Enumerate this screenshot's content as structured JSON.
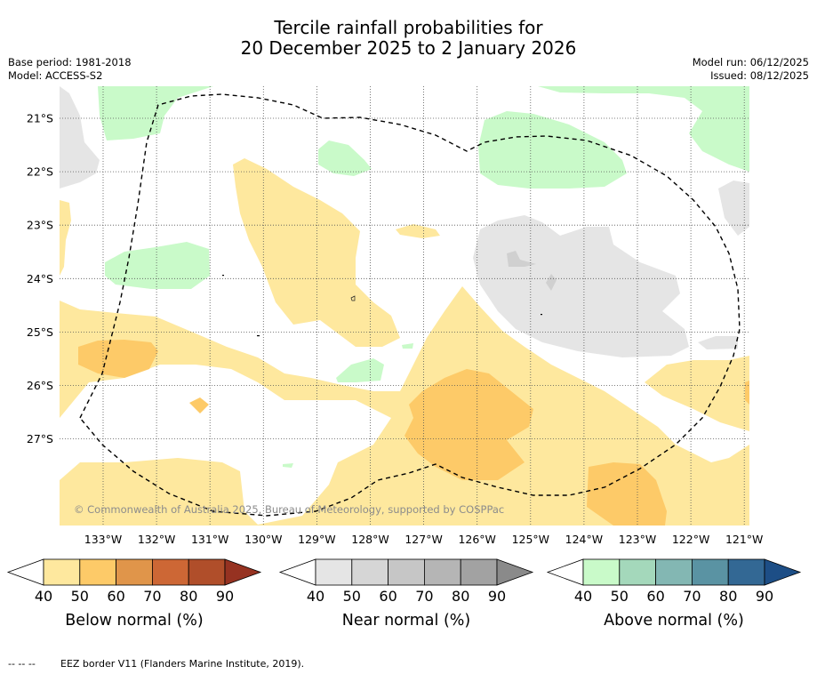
{
  "title_line1": "Tercile rainfall probabilities for",
  "title_line2": "20 December 2025 to 2 January 2026",
  "base_period": "Base period: 1981-2018",
  "model": "Model: ACCESS-S2",
  "model_run": "Model run: 06/12/2025",
  "issued": "Issued: 08/12/2025",
  "copyright": "© Commonwealth of Australia 2025, Bureau of Meteorology, supported by COSPPac",
  "map": {
    "lon_labels": [
      "133°W",
      "132°W",
      "131°W",
      "130°W",
      "129°W",
      "128°W",
      "127°W",
      "126°W",
      "125°W",
      "124°W",
      "123°W",
      "122°W",
      "121°W"
    ],
    "lat_labels": [
      "21°S",
      "22°S",
      "23°S",
      "24°S",
      "25°S",
      "26°S",
      "27°S"
    ]
  },
  "colorbars": [
    {
      "label": "Below normal (%)",
      "ticks": [
        "40",
        "50",
        "60",
        "70",
        "80",
        "90"
      ],
      "colors": [
        "#fee89e",
        "#fdca68",
        "#e0954a",
        "#cd6735",
        "#b04e2a",
        "#963221"
      ]
    },
    {
      "label": "Near normal (%)",
      "ticks": [
        "40",
        "50",
        "60",
        "70",
        "80",
        "90"
      ],
      "colors": [
        "#e5e5e5",
        "#d6d6d6",
        "#c6c6c6",
        "#b5b5b5",
        "#a2a2a2",
        "#8a8a8a"
      ]
    },
    {
      "label": "Above normal (%)",
      "ticks": [
        "40",
        "50",
        "60",
        "70",
        "80",
        "90"
      ],
      "colors": [
        "#c9fac9",
        "#a4d8bb",
        "#83b7b3",
        "#5a93a3",
        "#336894",
        "#1d4e86"
      ]
    }
  ],
  "footnote_symbol": "-- -- --",
  "footnote": "EEZ border V11 (Flanders Marine Institute, 2019)."
}
